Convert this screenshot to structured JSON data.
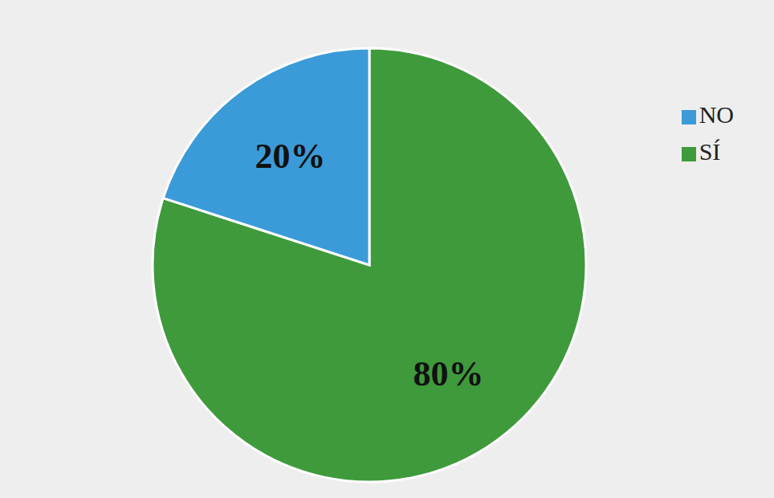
{
  "chart_data": {
    "type": "pie",
    "categories": [
      "SÍ",
      "NO"
    ],
    "values": [
      80,
      20
    ],
    "value_labels": [
      "80%",
      "20%"
    ],
    "colors": [
      "#3f9a3c",
      "#3b9bd8"
    ],
    "data_labels": true,
    "legend": "upper right"
  }
}
